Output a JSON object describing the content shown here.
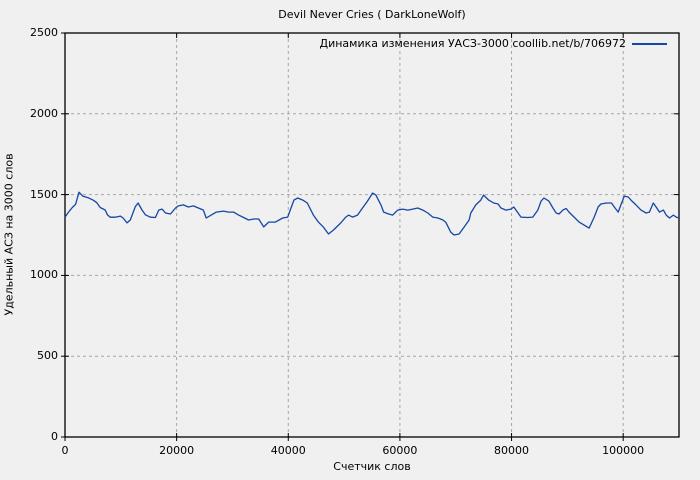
{
  "title": "Devil Never Cries ( DarkLoneWolf)",
  "legend": {
    "series_label": "Динамика изменения УАСЗ-3000 coollib.net/b/706972"
  },
  "colors": {
    "background": "#f0f0f0",
    "frame": "#000000",
    "grid": "#a6a6a6",
    "series": "#1547a5",
    "text": "#000000"
  },
  "chart_data": {
    "type": "line",
    "title": "Devil Never Cries ( DarkLoneWolf)",
    "series_name": "Динамика изменения УАСЗ-3000 coollib.net/b/706972",
    "xlabel": "Счетчик слов",
    "ylabel": "Удельный АСЗ на 3000 слов",
    "xlim": [
      0,
      110000
    ],
    "ylim": [
      0,
      2500
    ],
    "xticks": [
      0,
      20000,
      40000,
      60000,
      80000,
      100000
    ],
    "yticks": [
      0,
      500,
      1000,
      1500,
      2000,
      2500
    ],
    "grid": true,
    "grid_style": "dashed",
    "legend_position": "top-right-inside",
    "points": [
      [
        0,
        1360
      ],
      [
        600,
        1390
      ],
      [
        1300,
        1420
      ],
      [
        1900,
        1440
      ],
      [
        2500,
        1515
      ],
      [
        3200,
        1490
      ],
      [
        4200,
        1480
      ],
      [
        5100,
        1465
      ],
      [
        5700,
        1450
      ],
      [
        6300,
        1420
      ],
      [
        7200,
        1405
      ],
      [
        7600,
        1375
      ],
      [
        8100,
        1360
      ],
      [
        9000,
        1360
      ],
      [
        9900,
        1367
      ],
      [
        10400,
        1355
      ],
      [
        11100,
        1325
      ],
      [
        11700,
        1343
      ],
      [
        12600,
        1425
      ],
      [
        13100,
        1448
      ],
      [
        13800,
        1405
      ],
      [
        14400,
        1375
      ],
      [
        15300,
        1360
      ],
      [
        16200,
        1358
      ],
      [
        16800,
        1405
      ],
      [
        17400,
        1410
      ],
      [
        18000,
        1386
      ],
      [
        18900,
        1380
      ],
      [
        19800,
        1417
      ],
      [
        20300,
        1430
      ],
      [
        21200,
        1436
      ],
      [
        22100,
        1423
      ],
      [
        23000,
        1430
      ],
      [
        23900,
        1417
      ],
      [
        24800,
        1404
      ],
      [
        25300,
        1355
      ],
      [
        26200,
        1373
      ],
      [
        27100,
        1392
      ],
      [
        28400,
        1398
      ],
      [
        29300,
        1392
      ],
      [
        30200,
        1392
      ],
      [
        31100,
        1373
      ],
      [
        32000,
        1358
      ],
      [
        32900,
        1343
      ],
      [
        33800,
        1349
      ],
      [
        34700,
        1349
      ],
      [
        35600,
        1300
      ],
      [
        36500,
        1330
      ],
      [
        37700,
        1330
      ],
      [
        39000,
        1355
      ],
      [
        39900,
        1361
      ],
      [
        41000,
        1466
      ],
      [
        41700,
        1479
      ],
      [
        42600,
        1466
      ],
      [
        43400,
        1448
      ],
      [
        44500,
        1373
      ],
      [
        45400,
        1330
      ],
      [
        46300,
        1299
      ],
      [
        47200,
        1256
      ],
      [
        48100,
        1281
      ],
      [
        49400,
        1324
      ],
      [
        50300,
        1361
      ],
      [
        50800,
        1373
      ],
      [
        51500,
        1361
      ],
      [
        52400,
        1373
      ],
      [
        53300,
        1417
      ],
      [
        54200,
        1460
      ],
      [
        55100,
        1510
      ],
      [
        55700,
        1497
      ],
      [
        56600,
        1436
      ],
      [
        57100,
        1392
      ],
      [
        58000,
        1380
      ],
      [
        58700,
        1373
      ],
      [
        59600,
        1404
      ],
      [
        60500,
        1410
      ],
      [
        61400,
        1404
      ],
      [
        62300,
        1410
      ],
      [
        63200,
        1417
      ],
      [
        64100,
        1404
      ],
      [
        65000,
        1386
      ],
      [
        65900,
        1361
      ],
      [
        66800,
        1355
      ],
      [
        67700,
        1343
      ],
      [
        68200,
        1330
      ],
      [
        69100,
        1268
      ],
      [
        69700,
        1250
      ],
      [
        70600,
        1256
      ],
      [
        71500,
        1299
      ],
      [
        72400,
        1343
      ],
      [
        72700,
        1386
      ],
      [
        73600,
        1436
      ],
      [
        74500,
        1466
      ],
      [
        75000,
        1497
      ],
      [
        75900,
        1466
      ],
      [
        76800,
        1448
      ],
      [
        77600,
        1442
      ],
      [
        78100,
        1417
      ],
      [
        79000,
        1404
      ],
      [
        79900,
        1410
      ],
      [
        80400,
        1423
      ],
      [
        80800,
        1404
      ],
      [
        81700,
        1361
      ],
      [
        82900,
        1358
      ],
      [
        83800,
        1361
      ],
      [
        84700,
        1404
      ],
      [
        85300,
        1460
      ],
      [
        85800,
        1479
      ],
      [
        86700,
        1460
      ],
      [
        87400,
        1417
      ],
      [
        88000,
        1386
      ],
      [
        88500,
        1380
      ],
      [
        89200,
        1404
      ],
      [
        89800,
        1414
      ],
      [
        90300,
        1392
      ],
      [
        91200,
        1361
      ],
      [
        92100,
        1330
      ],
      [
        93000,
        1311
      ],
      [
        93900,
        1293
      ],
      [
        94800,
        1361
      ],
      [
        95500,
        1423
      ],
      [
        96000,
        1442
      ],
      [
        97000,
        1448
      ],
      [
        97900,
        1448
      ],
      [
        98400,
        1423
      ],
      [
        99100,
        1392
      ],
      [
        99600,
        1436
      ],
      [
        100200,
        1491
      ],
      [
        100900,
        1485
      ],
      [
        101400,
        1466
      ],
      [
        102300,
        1436
      ],
      [
        103200,
        1404
      ],
      [
        104100,
        1386
      ],
      [
        104700,
        1392
      ],
      [
        105400,
        1448
      ],
      [
        105900,
        1423
      ],
      [
        106500,
        1392
      ],
      [
        107200,
        1404
      ],
      [
        107700,
        1373
      ],
      [
        108300,
        1355
      ],
      [
        109000,
        1373
      ],
      [
        109500,
        1361
      ],
      [
        110000,
        1355
      ]
    ]
  }
}
